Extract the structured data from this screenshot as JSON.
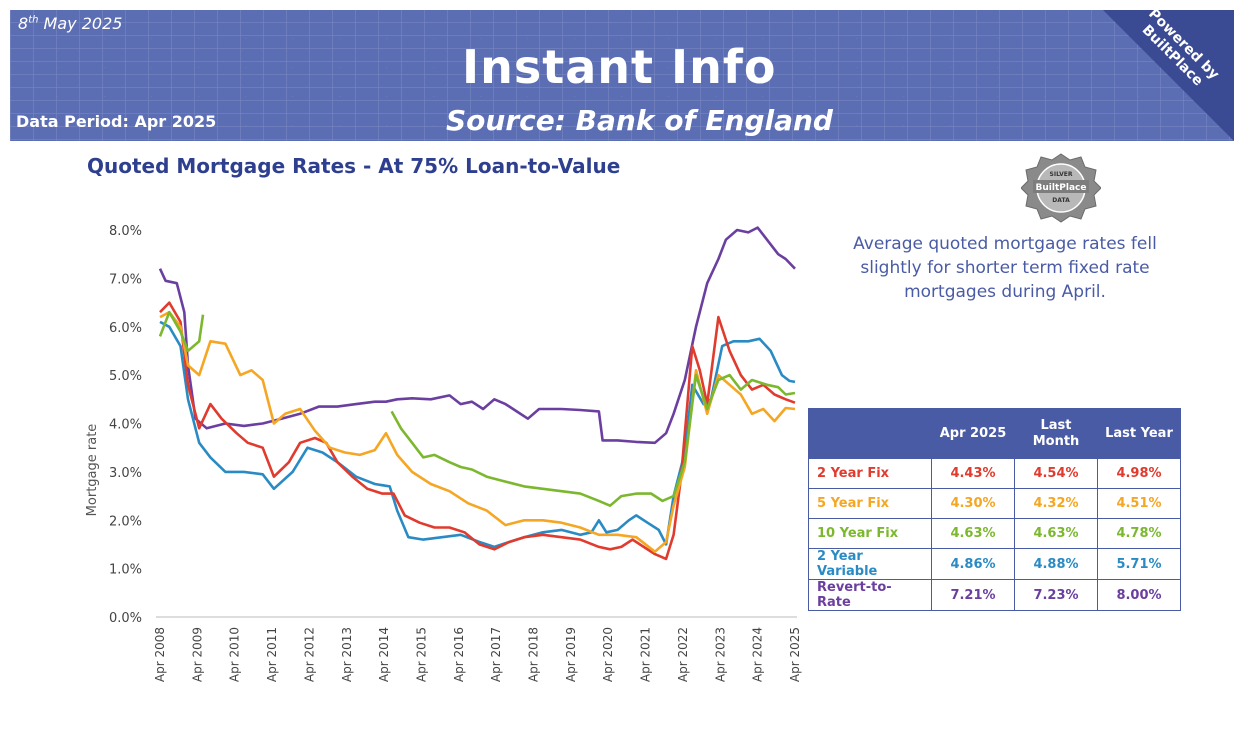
{
  "header": {
    "date_day": "8",
    "date_suffix": "th",
    "date_rest": " May 2025",
    "data_period": "Data Period: Apr 2025",
    "title": "Instant Info",
    "subtitle": "Source: Bank of England",
    "powered_line1": "Powered by",
    "powered_line2": "BuiltPlace"
  },
  "badge": {
    "top": "SILVER",
    "middle": "BuiltPlace",
    "bottom": "DATA"
  },
  "summary": "Average quoted mortgage rates fell slightly for shorter term fixed rate mortgages during April.",
  "table": {
    "headers": [
      "Apr 2025",
      "Last Month",
      "Last Year"
    ],
    "rows": [
      {
        "label": "2 Year Fix",
        "color": "#e03b2e",
        "values": [
          "4.43%",
          "4.54%",
          "4.98%"
        ]
      },
      {
        "label": "5 Year Fix",
        "color": "#f5a623",
        "values": [
          "4.30%",
          "4.32%",
          "4.51%"
        ]
      },
      {
        "label": "10 Year Fix",
        "color": "#7cb82f",
        "values": [
          "4.63%",
          "4.63%",
          "4.78%"
        ]
      },
      {
        "label": "2 Year Variable",
        "color": "#2a8bc4",
        "values": [
          "4.86%",
          "4.88%",
          "5.71%"
        ]
      },
      {
        "label": "Revert-to-Rate",
        "color": "#6b3fa0",
        "values": [
          "7.21%",
          "7.23%",
          "8.00%"
        ]
      }
    ]
  },
  "chart_data": {
    "type": "line",
    "title": "Quoted Mortgage Rates  - At 75% Loan-to-Value",
    "xlabel": "",
    "ylabel": "Mortgage rate",
    "xlim": [
      2008.25,
      2025.25
    ],
    "ylim": [
      0,
      8
    ],
    "yticks": [
      "0.0%",
      "1.0%",
      "2.0%",
      "3.0%",
      "4.0%",
      "5.0%",
      "6.0%",
      "7.0%",
      "8.0%"
    ],
    "xticks": [
      "Apr 2008",
      "Apr 2009",
      "Apr 2010",
      "Apr 2011",
      "Apr 2012",
      "Apr 2013",
      "Apr 2014",
      "Apr 2015",
      "Apr 2016",
      "Apr 2017",
      "Apr 2018",
      "Apr 2019",
      "Apr 2020",
      "Apr 2021",
      "Apr 2022",
      "Apr 2023",
      "Apr 2024",
      "Apr 2025"
    ],
    "series": [
      {
        "name": "Revert-to-Rate",
        "color": "#6b3fa0",
        "x": [
          2008.25,
          2008.4,
          2008.7,
          2008.9,
          2009.0,
          2009.2,
          2009.5,
          2010.0,
          2010.5,
          2011.0,
          2011.5,
          2012.0,
          2012.5,
          2013.0,
          2013.5,
          2014.0,
          2014.3,
          2014.6,
          2015.0,
          2015.5,
          2016.0,
          2016.3,
          2016.6,
          2016.9,
          2017.2,
          2017.5,
          2017.8,
          2018.1,
          2018.4,
          2018.7,
          2019.0,
          2019.5,
          2020.0,
          2020.1,
          2020.5,
          2021.0,
          2021.5,
          2021.8,
          2022.0,
          2022.3,
          2022.6,
          2022.9,
          2023.2,
          2023.4,
          2023.7,
          2024.0,
          2024.25,
          2024.5,
          2024.8,
          2025.0,
          2025.25
        ],
        "values": [
          7.2,
          6.95,
          6.9,
          6.3,
          5.2,
          4.1,
          3.9,
          4.0,
          3.95,
          4.0,
          4.1,
          4.2,
          4.35,
          4.35,
          4.4,
          4.45,
          4.45,
          4.5,
          4.52,
          4.5,
          4.58,
          4.4,
          4.45,
          4.3,
          4.5,
          4.4,
          4.25,
          4.1,
          4.3,
          4.3,
          4.3,
          4.28,
          4.25,
          3.65,
          3.65,
          3.62,
          3.6,
          3.8,
          4.2,
          4.9,
          6.0,
          6.9,
          7.4,
          7.8,
          8.0,
          7.95,
          8.05,
          7.8,
          7.5,
          7.4,
          7.2
        ]
      },
      {
        "name": "2 Year Variable",
        "color": "#2a8bc4",
        "x": [
          2008.25,
          2008.5,
          2008.8,
          2009.0,
          2009.3,
          2009.6,
          2010.0,
          2010.5,
          2011.0,
          2011.3,
          2011.8,
          2012.2,
          2012.6,
          2013.0,
          2013.5,
          2014.0,
          2014.4,
          2014.6,
          2014.9,
          2015.3,
          2015.8,
          2016.3,
          2016.8,
          2017.2,
          2017.6,
          2018.0,
          2018.5,
          2019.0,
          2019.5,
          2019.8,
          2020.0,
          2020.2,
          2020.5,
          2020.8,
          2021.0,
          2021.3,
          2021.6,
          2021.8,
          2022.0,
          2022.3,
          2022.5,
          2022.8,
          2023.0,
          2023.3,
          2023.6,
          2024.0,
          2024.3,
          2024.6,
          2024.9,
          2025.1,
          2025.25
        ],
        "values": [
          6.1,
          6.0,
          5.6,
          4.5,
          3.6,
          3.3,
          3.0,
          3.0,
          2.95,
          2.65,
          3.0,
          3.5,
          3.4,
          3.2,
          2.9,
          2.75,
          2.7,
          2.2,
          1.65,
          1.6,
          1.65,
          1.7,
          1.55,
          1.45,
          1.55,
          1.65,
          1.75,
          1.8,
          1.7,
          1.75,
          2.0,
          1.75,
          1.8,
          2.0,
          2.1,
          1.95,
          1.8,
          1.5,
          2.5,
          3.4,
          4.8,
          4.4,
          4.5,
          5.6,
          5.7,
          5.7,
          5.75,
          5.5,
          5.0,
          4.88,
          4.86
        ]
      },
      {
        "name": "2 Year Fix",
        "color": "#e03b2e",
        "x": [
          2008.25,
          2008.5,
          2008.8,
          2009.0,
          2009.3,
          2009.6,
          2009.9,
          2010.3,
          2010.6,
          2011.0,
          2011.3,
          2011.7,
          2012.0,
          2012.4,
          2012.7,
          2013.0,
          2013.4,
          2013.8,
          2014.2,
          2014.5,
          2014.8,
          2015.2,
          2015.6,
          2016.0,
          2016.4,
          2016.8,
          2017.2,
          2017.6,
          2018.0,
          2018.5,
          2019.0,
          2019.5,
          2020.0,
          2020.3,
          2020.6,
          2020.9,
          2021.2,
          2021.5,
          2021.8,
          2022.0,
          2022.2,
          2022.5,
          2022.7,
          2022.9,
          2023.2,
          2023.5,
          2023.8,
          2024.1,
          2024.4,
          2024.7,
          2025.0,
          2025.25
        ],
        "values": [
          6.3,
          6.5,
          6.1,
          4.8,
          3.9,
          4.4,
          4.1,
          3.8,
          3.6,
          3.5,
          2.9,
          3.2,
          3.6,
          3.7,
          3.6,
          3.2,
          2.9,
          2.65,
          2.55,
          2.55,
          2.1,
          1.95,
          1.85,
          1.85,
          1.75,
          1.5,
          1.4,
          1.55,
          1.65,
          1.7,
          1.65,
          1.6,
          1.45,
          1.4,
          1.45,
          1.6,
          1.45,
          1.3,
          1.2,
          1.7,
          2.9,
          5.6,
          5.1,
          4.4,
          6.2,
          5.5,
          5.0,
          4.7,
          4.8,
          4.6,
          4.5,
          4.43
        ]
      },
      {
        "name": "5 Year Fix",
        "color": "#f5a623",
        "x": [
          2008.25,
          2008.5,
          2008.8,
          2009.0,
          2009.3,
          2009.6,
          2010.0,
          2010.4,
          2010.7,
          2011.0,
          2011.3,
          2011.6,
          2012.0,
          2012.4,
          2012.8,
          2013.2,
          2013.6,
          2014.0,
          2014.3,
          2014.6,
          2015.0,
          2015.5,
          2016.0,
          2016.5,
          2017.0,
          2017.5,
          2018.0,
          2018.5,
          2019.0,
          2019.5,
          2020.0,
          2020.5,
          2021.0,
          2021.5,
          2021.8,
          2022.0,
          2022.3,
          2022.6,
          2022.9,
          2023.2,
          2023.5,
          2023.8,
          2024.1,
          2024.4,
          2024.7,
          2025.0,
          2025.25
        ],
        "values": [
          6.2,
          6.3,
          6.0,
          5.2,
          5.0,
          5.7,
          5.65,
          5.0,
          5.1,
          4.9,
          4.0,
          4.2,
          4.3,
          3.85,
          3.5,
          3.4,
          3.35,
          3.45,
          3.8,
          3.35,
          3.0,
          2.75,
          2.6,
          2.35,
          2.2,
          1.9,
          2.0,
          2.0,
          1.95,
          1.85,
          1.7,
          1.7,
          1.65,
          1.35,
          1.55,
          2.3,
          3.1,
          5.1,
          4.2,
          5.0,
          4.8,
          4.6,
          4.2,
          4.3,
          4.05,
          4.32,
          4.3
        ]
      },
      {
        "name": "10 Year Fix",
        "color": "#7cb82f",
        "x": [
          2008.25,
          2008.5,
          2008.8,
          2009.0,
          2009.3,
          2009.4
        ],
        "values": [
          5.8,
          6.3,
          5.9,
          5.5,
          5.7,
          6.25
        ]
      },
      {
        "name": "10 Year Fix",
        "color": "#7cb82f",
        "x": [
          2014.45,
          2014.7,
          2015.0,
          2015.3,
          2015.6,
          2016.0,
          2016.3,
          2016.6,
          2017.0,
          2017.5,
          2018.0,
          2018.5,
          2019.0,
          2019.5,
          2020.0,
          2020.3,
          2020.6,
          2021.0,
          2021.4,
          2021.7,
          2022.0,
          2022.3,
          2022.6,
          2022.9,
          2023.2,
          2023.5,
          2023.8,
          2024.1,
          2024.5,
          2024.8,
          2025.0,
          2025.25
        ],
        "values": [
          4.25,
          3.9,
          3.6,
          3.3,
          3.35,
          3.2,
          3.1,
          3.05,
          2.9,
          2.8,
          2.7,
          2.65,
          2.6,
          2.55,
          2.4,
          2.3,
          2.5,
          2.55,
          2.55,
          2.4,
          2.5,
          3.2,
          5.0,
          4.3,
          4.9,
          5.0,
          4.7,
          4.9,
          4.8,
          4.75,
          4.6,
          4.63
        ]
      }
    ]
  }
}
